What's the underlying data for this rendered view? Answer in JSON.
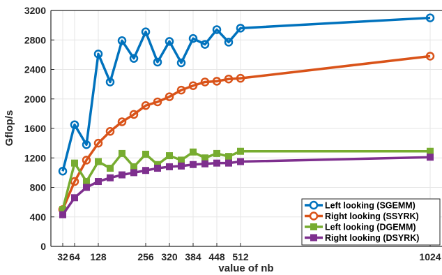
{
  "chart_data": {
    "type": "line",
    "title": "",
    "xlabel": "value of nb",
    "ylabel": "Gflop/s",
    "xlim": [
      0,
      1056
    ],
    "ylim": [
      0,
      3200
    ],
    "xticks": [
      32,
      64,
      128,
      256,
      320,
      384,
      448,
      512,
      1024
    ],
    "xtick_labels": [
      "32",
      "64",
      "128",
      "256",
      "320",
      "384",
      "448",
      "512",
      "1024"
    ],
    "yticks": [
      0,
      400,
      800,
      1200,
      1600,
      2000,
      2400,
      2800,
      3200
    ],
    "ytick_labels": [
      "0",
      "400",
      "800",
      "1200",
      "1600",
      "2000",
      "2400",
      "2800",
      "3200"
    ],
    "grid": true,
    "legend_position": "bottom-right",
    "x": [
      32,
      64,
      96,
      128,
      160,
      192,
      224,
      256,
      288,
      320,
      352,
      384,
      416,
      448,
      480,
      512,
      1024
    ],
    "series": [
      {
        "name": "Left looking (SGEMM)",
        "color": "#0072BD",
        "marker": "circle",
        "values": [
          1020,
          1650,
          1380,
          2610,
          2230,
          2790,
          2550,
          2910,
          2500,
          2780,
          2490,
          2820,
          2740,
          2940,
          2770,
          2960,
          3100
        ]
      },
      {
        "name": "Right looking (SSYRK)",
        "color": "#D95319",
        "marker": "circle",
        "values": [
          500,
          880,
          1170,
          1400,
          1560,
          1690,
          1790,
          1910,
          1960,
          2030,
          2120,
          2180,
          2230,
          2240,
          2270,
          2280,
          2580
        ]
      },
      {
        "name": "Left looking (DGEMM)",
        "color": "#77AC30",
        "marker": "square",
        "values": [
          500,
          1130,
          880,
          1150,
          1060,
          1260,
          1080,
          1250,
          1110,
          1230,
          1170,
          1280,
          1200,
          1260,
          1220,
          1290,
          1290
        ]
      },
      {
        "name": "Right looking (DSYRK)",
        "color": "#7E2F8E",
        "marker": "square",
        "values": [
          430,
          660,
          800,
          880,
          930,
          970,
          1000,
          1030,
          1060,
          1080,
          1090,
          1110,
          1120,
          1130,
          1130,
          1150,
          1210
        ]
      }
    ]
  }
}
